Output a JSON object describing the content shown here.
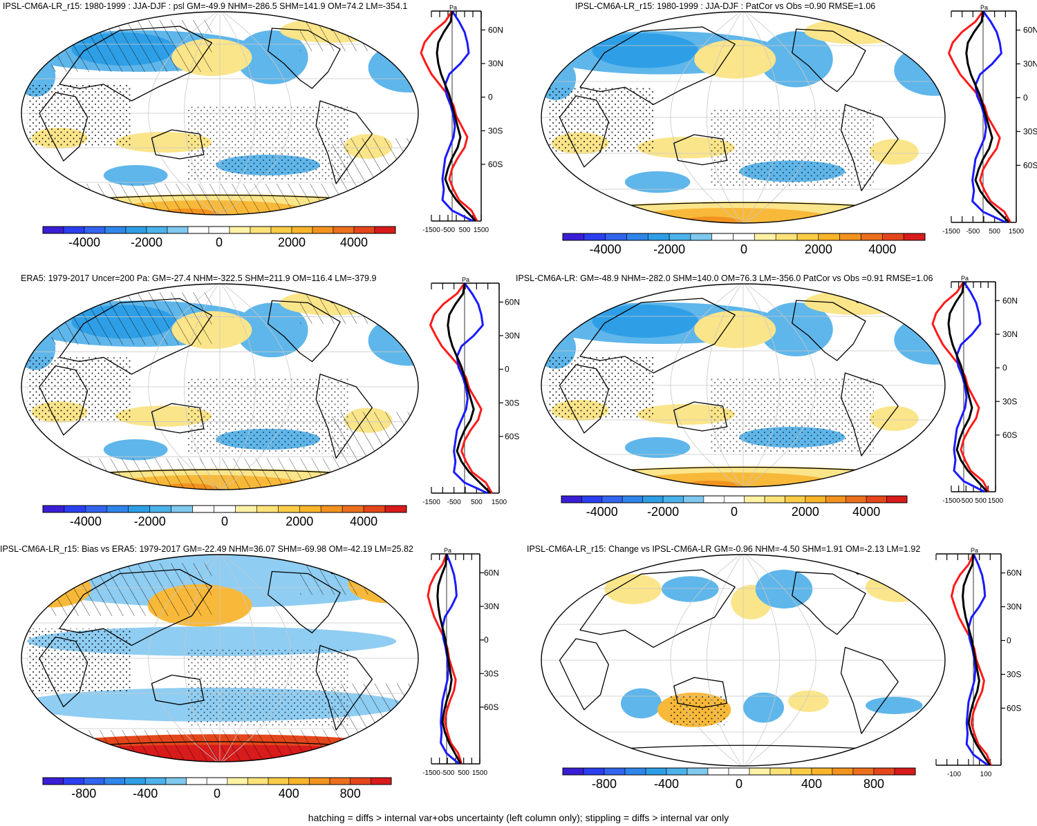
{
  "panels": [
    {
      "id": "p1",
      "title": "IPSL-CM6A-LR_r15: 1980-1999 : JJA-DJF : psl GM=-49.9 NHM=-286.5 SHM=141.9 OM=74.2 LM=-354.1",
      "lat_labels": [
        "60N",
        "30N",
        "0",
        "30S",
        "60S"
      ],
      "x_ticks": [
        "-1500",
        "-500",
        "500",
        "1500"
      ],
      "unit": "Pa",
      "cbar_labels": [
        "-4000",
        "-2000",
        "0",
        "2000",
        "4000"
      ]
    },
    {
      "id": "p2",
      "title": "IPSL-CM6A-LR_r15: 1980-1999 : JJA-DJF : PatCor vs Obs =0.90 RMSE=1.06",
      "lat_labels": [
        "60N",
        "30N",
        "0",
        "30S",
        "60S"
      ],
      "x_ticks": [
        "-1500",
        "-500",
        "500",
        "1500"
      ],
      "unit": "Pa",
      "cbar_labels": [
        "-4000",
        "-2000",
        "0",
        "2000",
        "4000"
      ]
    },
    {
      "id": "p3",
      "title": "ERA5: 1979-2017 Uncer=200 Pa: GM=-27.4 NHM=-322.5 SHM=211.9 OM=116.4 LM=-379.9",
      "lat_labels": [
        "60N",
        "30N",
        "0",
        "30S",
        "60S"
      ],
      "x_ticks": [
        "-1500",
        "-500",
        "500",
        "1500"
      ],
      "unit": "Pa",
      "cbar_labels": [
        "-4000",
        "-2000",
        "0",
        "2000",
        "4000"
      ]
    },
    {
      "id": "p4",
      "title": "IPSL-CM6A-LR: GM=-48.9 NHM=-282.0 SHM=140.0 OM=76.3 LM=-356.0 PatCor vs Obs =0.91 RMSE=1.06",
      "lat_labels": [
        "60N",
        "30N",
        "0",
        "30S",
        "60S"
      ],
      "x_ticks": [
        "-1500",
        "-500",
        "500",
        "1500"
      ],
      "unit": "Pa",
      "cbar_labels": [
        "-4000",
        "-2000",
        "0",
        "2000",
        "4000"
      ]
    },
    {
      "id": "p5",
      "title": "IPSL-CM6A-LR_r15: Bias vs ERA5: 1979-2017 GM=-22.49 NHM=36.07 SHM=-69.98 OM=-42.19 LM=25.82",
      "lat_labels": [
        "60N",
        "30N",
        "0",
        "30S",
        "60S"
      ],
      "x_ticks": [
        "-1500",
        "-500",
        "500",
        "1500"
      ],
      "unit": "Pa",
      "cbar_labels": [
        "-800",
        "-400",
        "0",
        "400",
        "800"
      ]
    },
    {
      "id": "p6",
      "title": "IPSL-CM6A-LR_r15: Change vs IPSL-CM6A-LR GM=-0.96 NHM=-4.50 SHM=1.91 OM=-2.13 LM=1.92",
      "lat_labels": [
        "60N",
        "30N",
        "0",
        "30S",
        "60S"
      ],
      "x_ticks": [
        "-100",
        "100"
      ],
      "unit": "Pa",
      "cbar_labels": [
        "-800",
        "-400",
        "0",
        "400",
        "800"
      ]
    }
  ],
  "palette": [
    "#3a1ed6",
    "#2b3ff0",
    "#3264ee",
    "#2f86ea",
    "#2e9fe6",
    "#4bb2ea",
    "#7fc8ee",
    "#ffffff",
    "#ffffff",
    "#fff2a6",
    "#fde27a",
    "#fbcd47",
    "#f8b42a",
    "#f2931f",
    "#ec6f1e",
    "#e4461c",
    "#d81b1b"
  ],
  "colors": {
    "blue_line": "#1a1aff",
    "red_line": "#ff1a1a",
    "black_line": "#000000",
    "neg_fill": "#5fb6ea",
    "neg_fill_light": "#8fcdf2",
    "pos_fill": "#fbe58a",
    "pos_fill_strong": "#f8b93a",
    "grid": "#c8c8c8"
  },
  "footer": "hatching = diffs > internal var+obs uncertainty (left column only); stippling = diffs > internal var only"
}
